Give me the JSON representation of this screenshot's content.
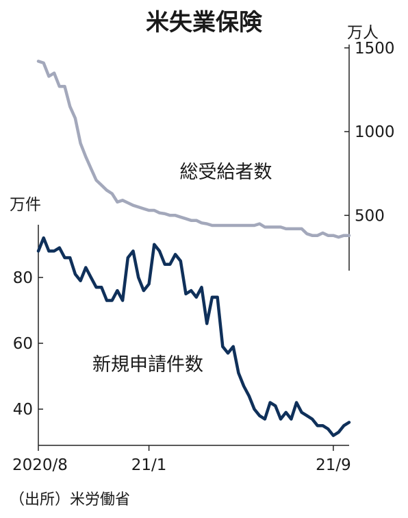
{
  "chart_data": {
    "type": "line",
    "title": "米失業保険",
    "source": "（出所）米労働省",
    "x_tick_labels": [
      "2020/8",
      "21/1",
      "21/9"
    ],
    "x_tick_index": [
      0,
      21,
      56
    ],
    "series": [
      {
        "name": "総受給者数",
        "axis": "right",
        "unit": "万人",
        "color": "#a3a8bb",
        "values": [
          1420,
          1410,
          1330,
          1350,
          1270,
          1270,
          1150,
          1080,
          930,
          850,
          780,
          710,
          680,
          650,
          630,
          580,
          590,
          575,
          560,
          550,
          540,
          530,
          530,
          515,
          510,
          500,
          500,
          490,
          480,
          470,
          470,
          455,
          450,
          440,
          440,
          440,
          440,
          440,
          440,
          440,
          440,
          440,
          450,
          430,
          430,
          430,
          430,
          420,
          420,
          420,
          420,
          390,
          380,
          380,
          395,
          380,
          380,
          370,
          380,
          380
        ]
      },
      {
        "name": "新規申請件数",
        "axis": "left",
        "unit": "万件",
        "color": "#0f305a",
        "values": [
          88,
          92,
          88,
          88,
          89,
          86,
          86,
          81,
          79,
          83,
          80,
          77,
          77,
          73,
          73,
          76,
          73,
          86,
          88,
          80,
          76,
          78,
          90,
          88,
          84,
          84,
          87,
          85,
          75,
          76,
          74,
          77,
          66,
          74,
          74,
          59,
          57,
          59,
          51,
          47,
          44,
          40,
          38,
          37,
          42,
          41,
          37,
          39,
          37,
          42,
          39,
          38,
          37,
          35,
          35,
          34,
          32,
          33,
          35,
          36
        ]
      }
    ],
    "left_axis": {
      "unit": "万件",
      "ticks": [
        40,
        60,
        80
      ],
      "range": [
        29,
        96
      ]
    },
    "right_axis": {
      "unit": "万人",
      "ticks": [
        500,
        1000,
        1500
      ],
      "range": [
        170,
        1520
      ]
    }
  }
}
